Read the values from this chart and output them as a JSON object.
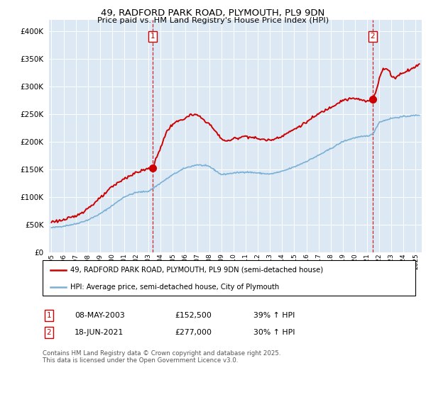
{
  "title": "49, RADFORD PARK ROAD, PLYMOUTH, PL9 9DN",
  "subtitle": "Price paid vs. HM Land Registry's House Price Index (HPI)",
  "legend_line1": "49, RADFORD PARK ROAD, PLYMOUTH, PL9 9DN (semi-detached house)",
  "legend_line2": "HPI: Average price, semi-detached house, City of Plymouth",
  "sale1_date": "08-MAY-2003",
  "sale1_price": 152500,
  "sale1_pct": "39% ↑ HPI",
  "sale1_year": 2003.35,
  "sale2_date": "18-JUN-2021",
  "sale2_price": 277000,
  "sale2_pct": "30% ↑ HPI",
  "sale2_year": 2021.46,
  "ylim": [
    0,
    420000
  ],
  "xlim_start": 1994.8,
  "xlim_end": 2025.5,
  "background_color": "#dce9f5",
  "red_line_color": "#cc0000",
  "blue_line_color": "#7ab0d4",
  "vline_color": "#cc0000",
  "footnote": "Contains HM Land Registry data © Crown copyright and database right 2025.\nThis data is licensed under the Open Government Licence v3.0."
}
